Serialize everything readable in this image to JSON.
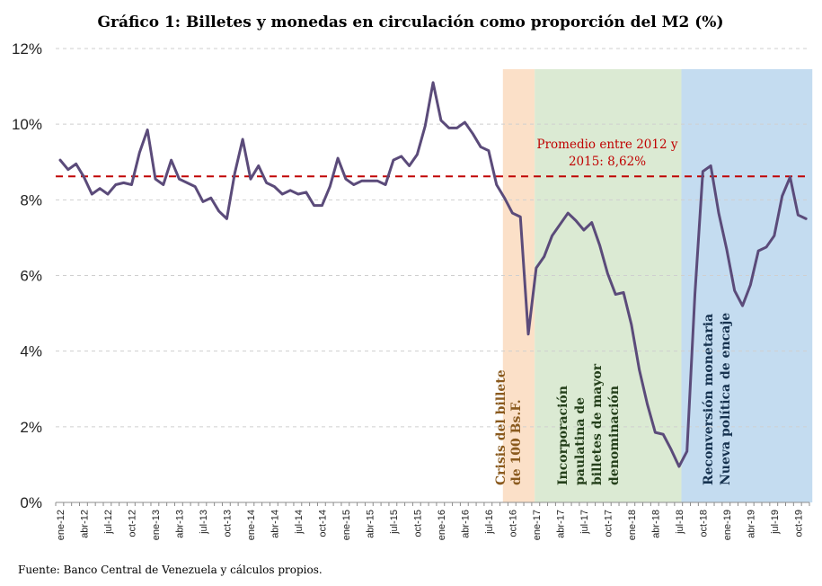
{
  "title": "Gráfico 1: Billetes y monedas en circulación como proporción del M2  (%)",
  "source": "Fuente: Banco Central de Venezuela y cálculos propios.",
  "chart_data": {
    "type": "line",
    "title": "Gráfico 1: Billetes y monedas en circulación como proporción del M2  (%)",
    "xlabel": "",
    "ylabel": "",
    "ylim": [
      0,
      12
    ],
    "yticks": [
      0,
      2,
      4,
      6,
      8,
      10,
      12
    ],
    "ytick_labels": [
      "0%",
      "2%",
      "4%",
      "6%",
      "8%",
      "10%",
      "12%"
    ],
    "grid": "horizontal dashed",
    "x_tick_labels": [
      "ene-12",
      "abr-12",
      "jul-12",
      "oct-12",
      "ene-13",
      "abr-13",
      "jul-13",
      "oct-13",
      "ene-14",
      "abr-14",
      "jul-14",
      "oct-14",
      "ene-15",
      "abr-15",
      "jul-15",
      "oct-15",
      "ene-16",
      "abr-16",
      "jul-16",
      "oct-16",
      "ene-17",
      "abr-17",
      "jul-17",
      "oct-17",
      "ene-18",
      "abr-18",
      "jul-18",
      "oct-18",
      "ene-19",
      "abr-19",
      "jul-19",
      "oct-19"
    ],
    "x_start": "ene-12",
    "x_end": "dic-19",
    "series": [
      {
        "values": [
          9.05,
          8.8,
          8.95,
          8.6,
          8.15,
          8.3,
          8.15,
          8.4,
          8.45,
          8.4,
          9.25,
          9.85,
          8.55,
          8.4,
          9.05,
          8.55,
          8.45,
          8.35,
          7.95,
          8.05,
          7.7,
          7.5,
          8.7,
          9.6,
          8.55,
          8.9,
          8.45,
          8.35,
          8.15,
          8.25,
          8.15,
          8.2,
          7.85,
          7.85,
          8.35,
          9.1,
          8.55,
          8.4,
          8.5,
          8.5,
          8.5,
          8.4,
          9.05,
          9.15,
          8.9,
          9.2,
          9.95,
          11.1,
          10.1,
          9.9,
          9.9,
          10.05,
          9.75,
          9.4,
          9.3,
          8.4,
          8.05,
          7.65,
          7.55,
          4.45,
          6.2,
          6.5,
          7.05,
          7.35,
          7.65,
          7.45,
          7.2,
          7.4,
          6.8,
          6.05,
          5.5,
          5.55,
          4.7,
          3.5,
          2.6,
          1.85,
          1.8,
          1.4,
          0.95,
          1.35,
          5.5,
          8.75,
          8.9,
          7.65,
          6.7,
          5.6,
          5.2,
          5.75,
          6.65,
          6.75,
          7.05,
          8.1,
          8.6,
          7.6,
          7.5
        ],
        "color": "#5b4b7a"
      }
    ],
    "reference_line": {
      "value": 8.62,
      "label_line1": "Promedio entre 2012 y",
      "label_line2": "2015: 8,62%",
      "color": "#c00000"
    },
    "bands": [
      {
        "start_month": 56,
        "end_month": 60,
        "color": "#fbe0c8",
        "text_color": "#8a5a1e",
        "lines": [
          "Crisis del billete",
          "de 100 Bs.F."
        ]
      },
      {
        "start_month": 60,
        "end_month": 78.5,
        "color": "#dbead3",
        "text_color": "#243f1a",
        "lines": [
          "Incorporación",
          "paulatina de",
          "billetes de mayor",
          "denominación"
        ]
      },
      {
        "start_month": 78.5,
        "end_month": 95,
        "color": "#c4dcf0",
        "text_color": "#16324f",
        "lines": [
          "Reconversión monetaria",
          "Nueva política de encaje"
        ]
      }
    ]
  }
}
